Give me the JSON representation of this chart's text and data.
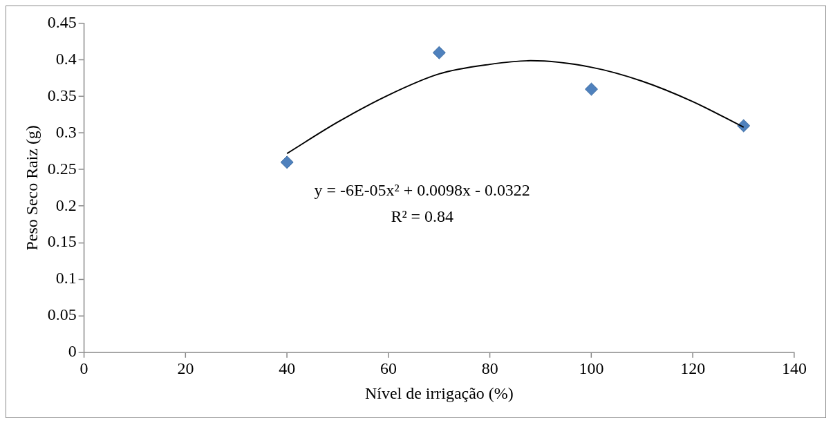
{
  "chart_data": {
    "type": "scatter",
    "xlabel": "Nível de irrigação (%)",
    "ylabel": "Peso Seco Raiz (g)",
    "grid": false,
    "legend": false,
    "xlim": [
      0,
      140
    ],
    "xticks": [
      0,
      20,
      40,
      60,
      80,
      100,
      120,
      140
    ],
    "ylim": [
      0,
      0.45
    ],
    "yticks": [
      0,
      0.05,
      0.1,
      0.15,
      0.2,
      0.25,
      0.3,
      0.35,
      0.4,
      0.45
    ],
    "series": [
      {
        "marker": "diamond",
        "color": "#4f81bd",
        "x": [
          40,
          70,
          100,
          130
        ],
        "values": [
          0.26,
          0.41,
          0.36,
          0.31
        ]
      },
      {
        "type": "line",
        "marker": "none",
        "color": "#000000",
        "x": [
          40,
          50,
          60,
          70,
          80,
          88,
          100,
          110,
          120,
          130
        ],
        "values": [
          0.272,
          0.315,
          0.352,
          0.381,
          0.394,
          0.399,
          0.39,
          0.371,
          0.343,
          0.308
        ]
      }
    ],
    "annotations": [
      "y = -6E-05x² + 0.0098x - 0.0322",
      "R² = 0.84"
    ]
  }
}
